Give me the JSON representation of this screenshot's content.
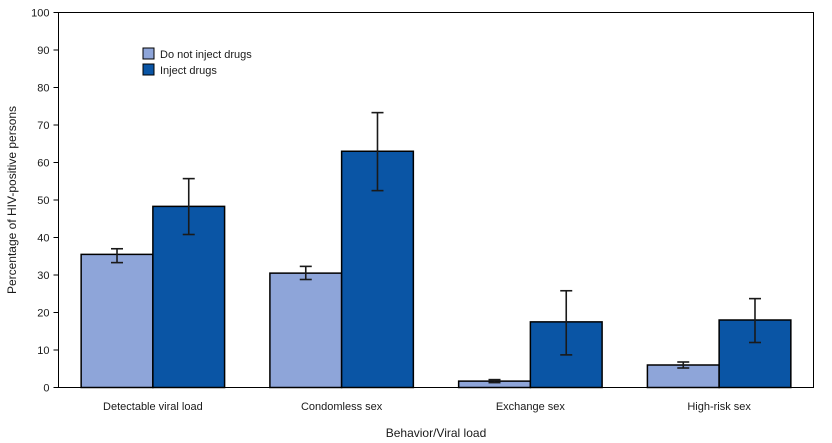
{
  "chart_data": {
    "type": "bar",
    "title": "",
    "xlabel": "Behavior/Viral load",
    "ylabel": "Percentage of HIV-positive persons",
    "ylim": [
      0,
      100
    ],
    "yticks": [
      0,
      10,
      20,
      30,
      40,
      50,
      60,
      70,
      80,
      90,
      100
    ],
    "ytick_labels": [
      "0",
      "10",
      "20",
      "30",
      "40",
      "50",
      "60",
      "70",
      "80",
      "90",
      "100"
    ],
    "grid": false,
    "legend_position": "top-left",
    "categories": [
      "Detectable viral load",
      "Condomless sex",
      "Exchange sex",
      "High-risk sex"
    ],
    "series": [
      {
        "name": "Do not inject drugs",
        "color": "#8ea5d9",
        "values": [
          35.5,
          30.5,
          1.7,
          6.0
        ],
        "error_low": [
          33.3,
          28.8,
          1.3,
          5.2
        ],
        "error_high": [
          37.0,
          32.3,
          2.1,
          6.8
        ]
      },
      {
        "name": "Inject drugs",
        "color": "#0a55a5",
        "values": [
          48.3,
          63.0,
          17.5,
          18.0
        ],
        "error_low": [
          40.8,
          52.5,
          8.7,
          12.0
        ],
        "error_high": [
          55.7,
          73.3,
          25.8,
          23.7
        ]
      }
    ]
  }
}
